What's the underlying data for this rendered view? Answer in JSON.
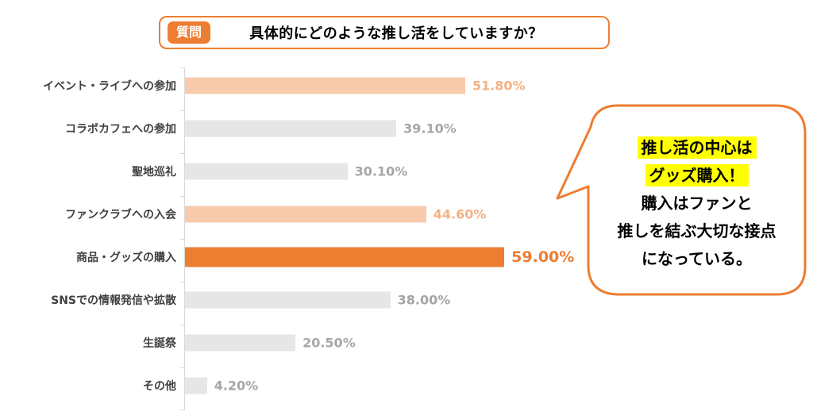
{
  "header": {
    "badge": "質問",
    "title": "具体的にどのような推し活をしていますか？"
  },
  "chart_data": {
    "type": "bar",
    "orientation": "horizontal",
    "title": "具体的にどのような推し活をしていますか？",
    "xlabel": "",
    "ylabel": "",
    "xlim": [
      0,
      60
    ],
    "grid": false,
    "legend": false,
    "categories": [
      "イベント・ライブへの参加",
      "コラボカフェへの参加",
      "聖地巡礼",
      "ファンクラブへの入会",
      "商品・グッズの購入",
      "SNSでの情報発信や拡散",
      "生誕祭",
      "その他"
    ],
    "values": [
      51.8,
      39.1,
      30.1,
      44.6,
      59.0,
      38.0,
      20.5,
      4.2
    ],
    "value_labels": [
      "51.80%",
      "39.10%",
      "30.10%",
      "44.60%",
      "59.00%",
      "38.00%",
      "20.50%",
      "4.20%"
    ],
    "bar_colors": [
      "#F8CBAD",
      "#E6E6E6",
      "#E6E6E6",
      "#F8CBAD",
      "#ED7D31",
      "#E6E6E6",
      "#E6E6E6",
      "#E6E6E6"
    ],
    "value_label_colors": [
      "#F4B183",
      "#A6A6A6",
      "#A6A6A6",
      "#F4B183",
      "#ED7D31",
      "#A6A6A6",
      "#A6A6A6",
      "#A6A6A6"
    ],
    "highlight_index": 4
  },
  "callout": {
    "lines": [
      {
        "text": "推し活の中心は",
        "highlight": true
      },
      {
        "text": "グッズ購入！",
        "highlight": true
      },
      {
        "text": "購入はファンと",
        "highlight": false
      },
      {
        "text": "推しを結ぶ大切な接点",
        "highlight": false
      },
      {
        "text": "になっている。",
        "highlight": false
      }
    ],
    "highlight_color": "#FFFF00",
    "border_color": "#ED7D31",
    "fill_color": "#FFFFFF"
  },
  "colors": {
    "accent": "#ED7D31",
    "accent_light": "#F8CBAD",
    "bar_gray": "#E6E6E6",
    "value_gray": "#A6A6A6",
    "category_text": "#404040",
    "axis_line": "#D9D9D9",
    "background": "#FFFFFF"
  }
}
